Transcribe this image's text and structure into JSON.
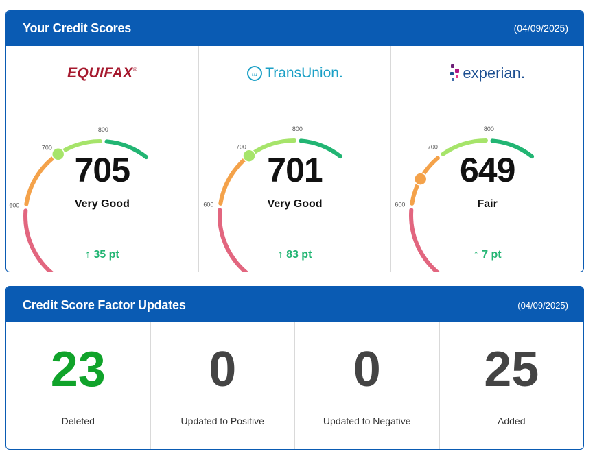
{
  "scores_card": {
    "title": "Your Credit Scores",
    "date": "(04/09/2025)",
    "bureaus": [
      {
        "name": "EQUIFAX",
        "mark": "®",
        "score": "705",
        "rating": "Very Good",
        "change": "35 pt",
        "level": 705
      },
      {
        "name": "TransUnion",
        "mark": ".",
        "logo_badge": "tu",
        "score": "701",
        "rating": "Very Good",
        "change": "83 pt",
        "level": 701
      },
      {
        "name": "experian",
        "mark": ".",
        "score": "649",
        "rating": "Fair",
        "change": "7 pt",
        "level": 649
      }
    ],
    "ticks": [
      "600",
      "700",
      "800"
    ],
    "change_arrow": "↑"
  },
  "factors_card": {
    "title": "Credit Score Factor Updates",
    "date": "(04/09/2025)",
    "items": [
      {
        "value": "23",
        "label": "Deleted",
        "color": "#10a32a"
      },
      {
        "value": "0",
        "label": "Updated to Positive",
        "color": "#444444"
      },
      {
        "value": "0",
        "label": "Updated to Negative",
        "color": "#444444"
      },
      {
        "value": "25",
        "label": "Added",
        "color": "#444444"
      }
    ]
  },
  "colors": {
    "brand": "#0a5bb3",
    "band_poor": "#e2667f",
    "band_fair": "#f4a24a",
    "band_good": "#a6e46a",
    "band_excellent": "#22b573",
    "equifax": "#a6192e",
    "transunion": "#1ba0c6",
    "experian": "#1d4f91"
  }
}
